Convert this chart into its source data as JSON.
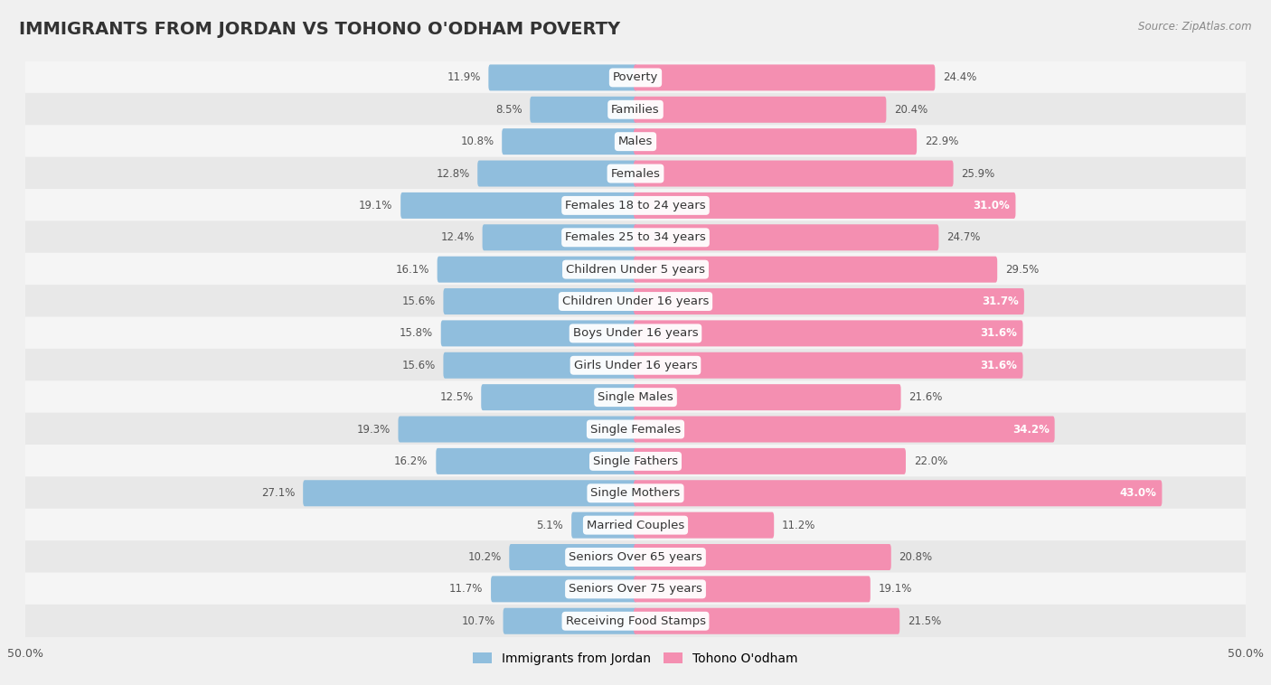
{
  "title": "IMMIGRANTS FROM JORDAN VS TOHONO O'ODHAM POVERTY",
  "source": "Source: ZipAtlas.com",
  "categories": [
    "Poverty",
    "Families",
    "Males",
    "Females",
    "Females 18 to 24 years",
    "Females 25 to 34 years",
    "Children Under 5 years",
    "Children Under 16 years",
    "Boys Under 16 years",
    "Girls Under 16 years",
    "Single Males",
    "Single Females",
    "Single Fathers",
    "Single Mothers",
    "Married Couples",
    "Seniors Over 65 years",
    "Seniors Over 75 years",
    "Receiving Food Stamps"
  ],
  "jordan_values": [
    11.9,
    8.5,
    10.8,
    12.8,
    19.1,
    12.4,
    16.1,
    15.6,
    15.8,
    15.6,
    12.5,
    19.3,
    16.2,
    27.1,
    5.1,
    10.2,
    11.7,
    10.7
  ],
  "tohono_values": [
    24.4,
    20.4,
    22.9,
    25.9,
    31.0,
    24.7,
    29.5,
    31.7,
    31.6,
    31.6,
    21.6,
    34.2,
    22.0,
    43.0,
    11.2,
    20.8,
    19.1,
    21.5
  ],
  "jordan_color": "#90bedd",
  "tohono_color": "#f48fb1",
  "jordan_label": "Immigrants from Jordan",
  "tohono_label": "Tohono O'odham",
  "row_colors": [
    "#f5f5f5",
    "#e8e8e8"
  ],
  "background_color": "#f0f0f0",
  "xlim": 50.0,
  "bar_height": 0.52,
  "title_fontsize": 14,
  "label_fontsize": 9.5,
  "value_fontsize": 8.5
}
